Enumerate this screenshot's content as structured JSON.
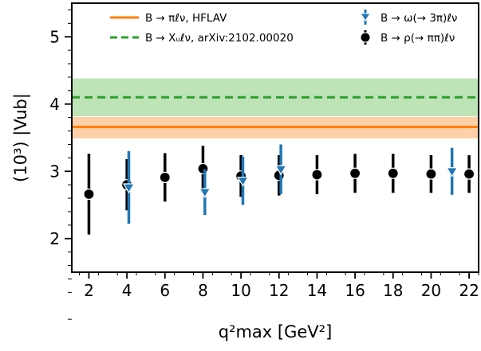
{
  "chart_data": {
    "type": "scatter",
    "xlabel": "q²max [GeV²]",
    "ylabel": "(10³) |Vub|",
    "xlim": [
      1.1,
      22.5
    ],
    "ylim": [
      1.5,
      5.5
    ],
    "xticks": [
      "2",
      "4",
      "6",
      "8",
      "10",
      "12",
      "14",
      "16",
      "18",
      "20",
      "22"
    ],
    "yticks": [
      "2",
      "3",
      "4",
      "5"
    ],
    "grid": false,
    "legend_position": "top",
    "bands": [
      {
        "name": "B → πℓν, HFLAV",
        "style": "solid",
        "color": "#ff7f0e",
        "band_color": "#fdd0a8",
        "value": 3.66,
        "lower": 3.49,
        "upper": 3.81
      },
      {
        "name": "B → Xᵤℓν, arXiv:2102.00020",
        "style": "dashed",
        "color": "#2ca02c",
        "band_color": "#bde3b6",
        "value": 4.1,
        "lower": 3.82,
        "upper": 4.38
      }
    ],
    "series": [
      {
        "name": "B → ρ(→ ππ)ℓν",
        "marker": "circle",
        "color": "#000000",
        "points": [
          {
            "x": 2,
            "y": 2.66,
            "lo": 2.06,
            "hi": 3.26
          },
          {
            "x": 4,
            "y": 2.8,
            "lo": 2.42,
            "hi": 3.18
          },
          {
            "x": 6,
            "y": 2.91,
            "lo": 2.55,
            "hi": 3.27
          },
          {
            "x": 8,
            "y": 3.04,
            "lo": 2.7,
            "hi": 3.38
          },
          {
            "x": 10,
            "y": 2.93,
            "lo": 2.62,
            "hi": 3.24
          },
          {
            "x": 12,
            "y": 2.94,
            "lo": 2.64,
            "hi": 3.24
          },
          {
            "x": 14,
            "y": 2.95,
            "lo": 2.66,
            "hi": 3.24
          },
          {
            "x": 16,
            "y": 2.97,
            "lo": 2.68,
            "hi": 3.26
          },
          {
            "x": 18,
            "y": 2.97,
            "lo": 2.68,
            "hi": 3.26
          },
          {
            "x": 20,
            "y": 2.96,
            "lo": 2.68,
            "hi": 3.24
          },
          {
            "x": 22,
            "y": 2.96,
            "lo": 2.68,
            "hi": 3.24
          }
        ]
      },
      {
        "name": "B → ω(→ 3π)ℓν",
        "marker": "triangle-down",
        "color": "#1f77b4",
        "points": [
          {
            "x": 4.1,
            "y": 2.76,
            "lo": 2.22,
            "hi": 3.3
          },
          {
            "x": 8.1,
            "y": 2.69,
            "lo": 2.35,
            "hi": 3.03
          },
          {
            "x": 10.1,
            "y": 2.86,
            "lo": 2.5,
            "hi": 3.22
          },
          {
            "x": 12.1,
            "y": 3.03,
            "lo": 2.66,
            "hi": 3.4
          },
          {
            "x": 21.1,
            "y": 3.0,
            "lo": 2.65,
            "hi": 3.35
          }
        ]
      }
    ]
  }
}
